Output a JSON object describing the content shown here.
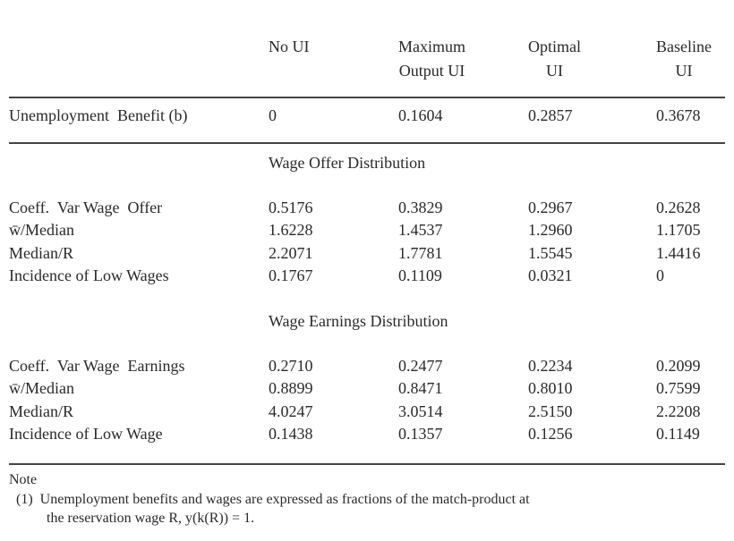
{
  "header": {
    "columns": [
      [
        "No UI"
      ],
      [
        "Maximum",
        "Output UI"
      ],
      [
        "Optimal",
        "UI"
      ],
      [
        "Baseline",
        "UI"
      ]
    ]
  },
  "top_row": {
    "label": "Unemployment  Benefit (b)",
    "cells": [
      "0",
      "0.1604",
      "0.2857",
      "0.3678"
    ]
  },
  "sections": [
    {
      "title": "Wage Offer Distribution",
      "rows": [
        {
          "label": "Coeff.  Var Wage  Offer",
          "cells": [
            "0.5176",
            "0.3829",
            "0.2967",
            "0.2628"
          ]
        },
        {
          "label": "w̄/Median",
          "cells": [
            "1.6228",
            "1.4537",
            "1.2960",
            "1.1705"
          ]
        },
        {
          "label": "Median/R",
          "cells": [
            "2.2071",
            "1.7781",
            "1.5545",
            "1.4416"
          ]
        },
        {
          "label": "Incidence of Low Wages",
          "cells": [
            "0.1767",
            "0.1109",
            "0.0321",
            "0"
          ]
        }
      ]
    },
    {
      "title": "Wage Earnings Distribution",
      "rows": [
        {
          "label": "Coeff.  Var Wage  Earnings",
          "cells": [
            "0.2710",
            "0.2477",
            "0.2234",
            "0.2099"
          ]
        },
        {
          "label": "w̄/Median",
          "cells": [
            "0.8899",
            "0.8471",
            "0.8010",
            "0.7599"
          ]
        },
        {
          "label": "Median/R",
          "cells": [
            "4.0247",
            "3.0514",
            "2.5150",
            "2.2208"
          ]
        },
        {
          "label": "Incidence of Low Wage",
          "cells": [
            "0.1438",
            "0.1357",
            "0.1256",
            "0.1149"
          ]
        }
      ]
    }
  ],
  "note": {
    "title": "Note",
    "lines": [
      "(1)  Unemployment benefits and wages are expressed as fractions of the match-product at",
      "the reservation wage R, y(k(R)) = 1."
    ]
  }
}
